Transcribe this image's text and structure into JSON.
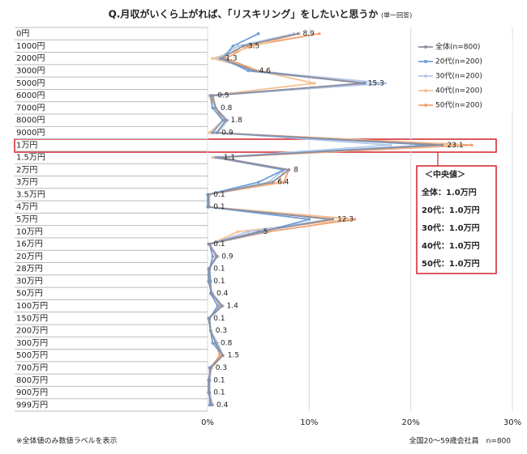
{
  "chart_data": {
    "type": "line",
    "orientation": "horizontal",
    "title": "Q.月収がいくら上がれば、「リスキリング」をしたいと思うか",
    "subtitle": "(単一回答)",
    "categories": [
      "0円",
      "1000円",
      "2000円",
      "3000円",
      "5000円",
      "6000円",
      "7000円",
      "8000円",
      "9000円",
      "1万円",
      "1.5万円",
      "2万円",
      "3万円",
      "3.5万円",
      "4万円",
      "5万円",
      "10万円",
      "16万円",
      "20万円",
      "28万円",
      "30万円",
      "50万円",
      "100万円",
      "150万円",
      "200万円",
      "300万円",
      "500万円",
      "700万円",
      "800万円",
      "900万円",
      "999万円"
    ],
    "series": [
      {
        "name": "全体(n=800)",
        "color": "#8e8e9e",
        "values": [
          8.9,
          3.5,
          1.3,
          4.6,
          15.3,
          0.5,
          0.8,
          1.8,
          0.9,
          23.1,
          1.1,
          8.0,
          6.4,
          0.1,
          0.1,
          12.3,
          5.0,
          0.1,
          0.9,
          0.1,
          0.1,
          0.4,
          1.4,
          0.1,
          0.3,
          0.8,
          1.5,
          0.3,
          0.1,
          0.1,
          0.4
        ]
      },
      {
        "name": "20代(n=200)",
        "color": "#6f9fd8",
        "values": [
          5.0,
          2.5,
          1.5,
          4.0,
          15.5,
          0.3,
          0.5,
          1.5,
          0.5,
          22.0,
          0.8,
          7.5,
          5.0,
          0.0,
          0.0,
          10.0,
          5.5,
          0.2,
          0.5,
          0.2,
          0.3,
          0.3,
          1.0,
          0.2,
          0.3,
          0.5,
          1.5,
          0.2,
          0.2,
          0.2,
          0.2
        ]
      },
      {
        "name": "30代(n=200)",
        "color": "#b4c8e8",
        "values": [
          8.5,
          3.0,
          1.0,
          4.5,
          17.5,
          0.5,
          0.8,
          2.0,
          1.0,
          18.0,
          1.0,
          7.5,
          6.0,
          0.2,
          0.2,
          12.0,
          4.0,
          0.2,
          1.0,
          0.2,
          0.2,
          0.5,
          1.5,
          0.2,
          0.3,
          1.0,
          1.5,
          0.3,
          0.2,
          0.2,
          0.5
        ]
      },
      {
        "name": "40代(n=200)",
        "color": "#f6c08f",
        "values": [
          9.0,
          4.5,
          0.5,
          5.0,
          10.5,
          0.2,
          0.5,
          1.5,
          0.2,
          25.0,
          0.5,
          7.5,
          7.0,
          0.1,
          0.1,
          14.0,
          3.0,
          0.3,
          0.8,
          0.2,
          0.1,
          0.5,
          1.2,
          0.1,
          0.3,
          0.8,
          1.5,
          0.4,
          0.2,
          0.1,
          0.5
        ]
      },
      {
        "name": "50代(n=200)",
        "color": "#f0a070",
        "values": [
          11.0,
          4.0,
          1.8,
          5.0,
          15.5,
          0.3,
          0.8,
          1.5,
          0.5,
          26.0,
          1.0,
          8.0,
          7.5,
          0.1,
          0.1,
          14.5,
          6.0,
          0.2,
          1.0,
          0.1,
          0.1,
          0.4,
          1.5,
          0.1,
          0.3,
          0.8,
          1.2,
          0.3,
          0.1,
          0.1,
          0.4
        ]
      }
    ],
    "xlim": [
      0,
      30
    ],
    "xticks": [
      {
        "value": 0,
        "label": "0%"
      },
      {
        "value": 10,
        "label": "10%"
      },
      {
        "value": 20,
        "label": "20%"
      },
      {
        "value": 30,
        "label": "30%"
      }
    ],
    "grid": true,
    "legend": "upper right",
    "median_box": {
      "title": "＜中央値＞",
      "lines": [
        "全体：1.0万円",
        "20代：1.0万円",
        "30代：1.0万円",
        "40代：1.0万円",
        "50代：1.0万円"
      ]
    },
    "notes": [
      "※全体値のみ数値ラベルを表示",
      "全国20～59歳会社員　n=800"
    ]
  }
}
